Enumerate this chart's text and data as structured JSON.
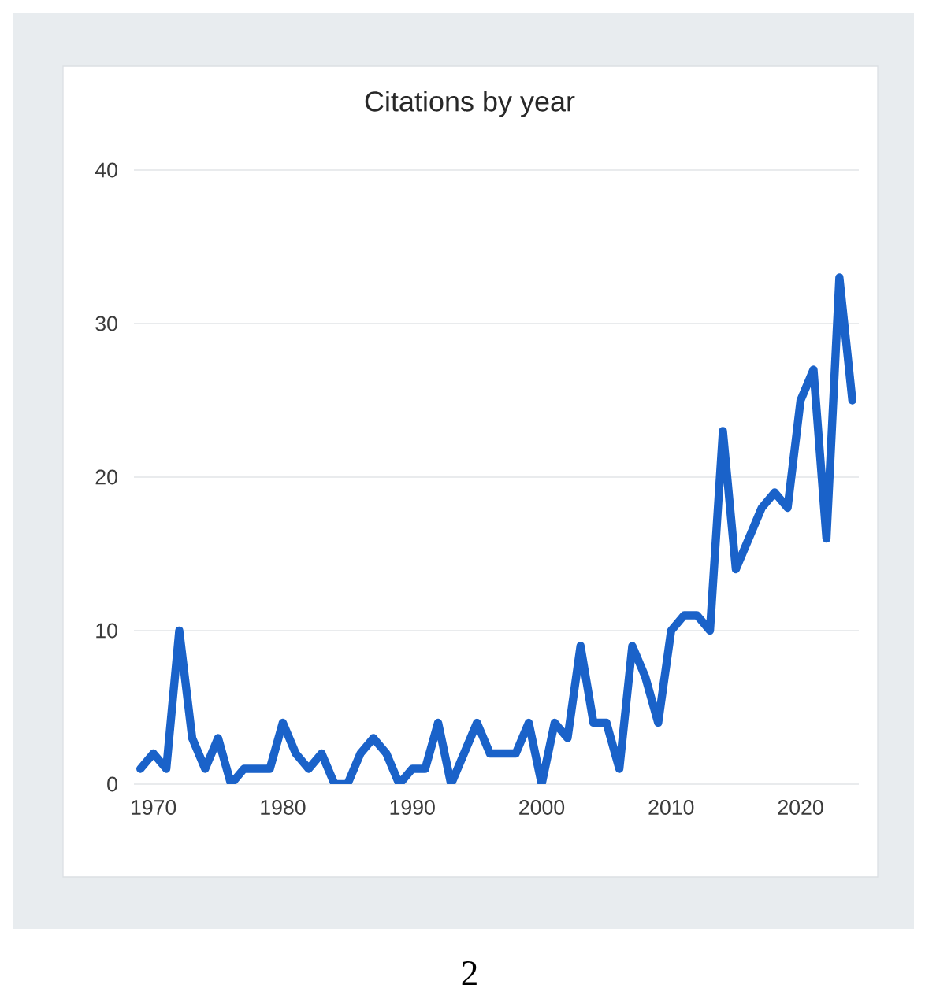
{
  "chart_data": {
    "type": "line",
    "title": "Citations by year",
    "x": [
      1969,
      1970,
      1971,
      1972,
      1973,
      1974,
      1975,
      1976,
      1977,
      1978,
      1979,
      1980,
      1981,
      1982,
      1983,
      1984,
      1985,
      1986,
      1987,
      1988,
      1989,
      1990,
      1991,
      1992,
      1993,
      1994,
      1995,
      1996,
      1997,
      1998,
      1999,
      2000,
      2001,
      2002,
      2003,
      2004,
      2005,
      2006,
      2007,
      2008,
      2009,
      2010,
      2011,
      2012,
      2013,
      2014,
      2015,
      2016,
      2017,
      2018,
      2019,
      2020,
      2021,
      2022,
      2023,
      2024
    ],
    "series": [
      {
        "color": "#1a62c9",
        "values": [
          1,
          2,
          1,
          10,
          3,
          1,
          3,
          0,
          1,
          1,
          1,
          4,
          2,
          1,
          2,
          0,
          0,
          2,
          3,
          2,
          0,
          1,
          1,
          4,
          0,
          2,
          4,
          2,
          2,
          2,
          4,
          0,
          4,
          3,
          9,
          4,
          4,
          1,
          9,
          7,
          4,
          10,
          11,
          11,
          10,
          23,
          14,
          16,
          18,
          19,
          18,
          25,
          27,
          16,
          33,
          25
        ]
      }
    ],
    "xlim": [
      1968.5,
      2024.5
    ],
    "ylim": [
      0,
      40
    ],
    "xticks": [
      1970,
      1980,
      1990,
      2000,
      2010,
      2020
    ],
    "yticks": [
      0,
      10,
      20,
      30,
      40
    ],
    "grid": "y",
    "marker": "none",
    "line_style": "solid",
    "annotations": [
      "2"
    ]
  }
}
